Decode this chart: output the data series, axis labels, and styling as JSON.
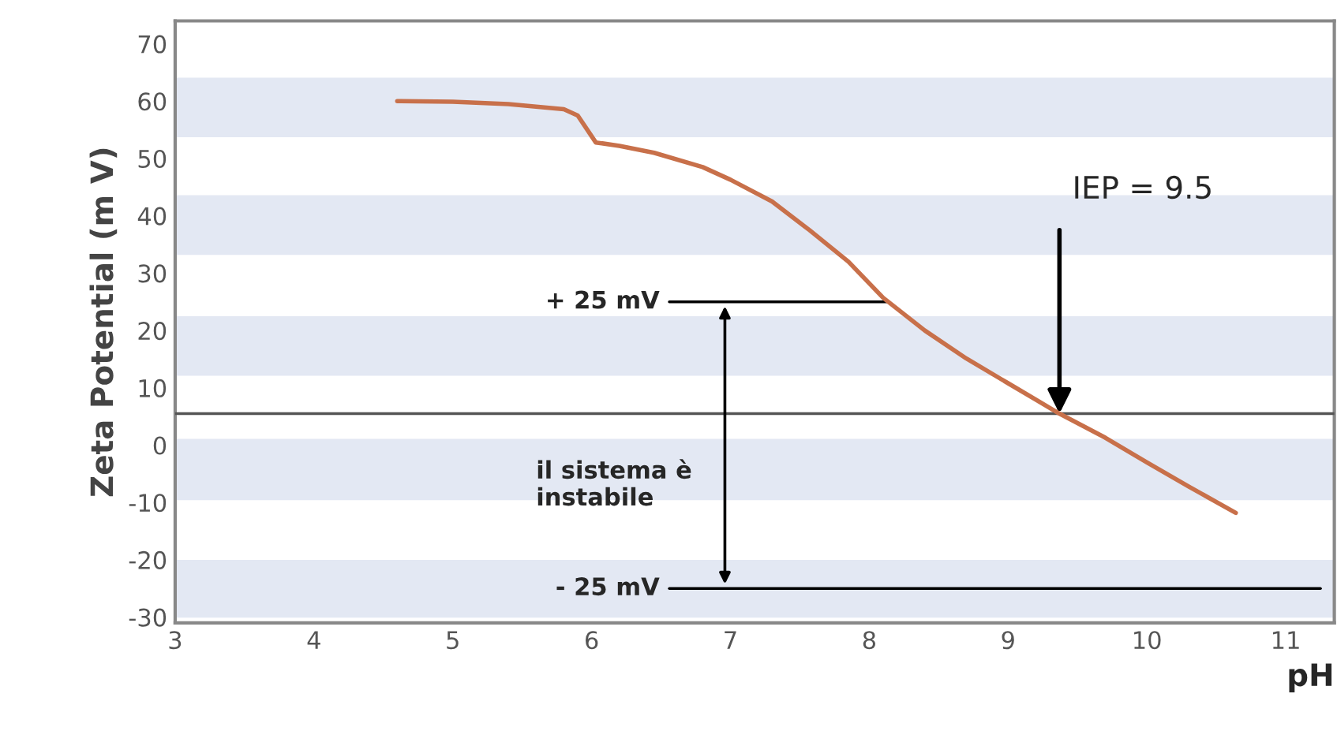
{
  "chart_data": {
    "type": "line",
    "xlabel": "pH",
    "ylabel": "Zeta Potential (m V)",
    "x": [
      4.6,
      5.0,
      5.4,
      5.8,
      5.9,
      6.03,
      6.2,
      6.45,
      6.8,
      7.0,
      7.3,
      7.57,
      7.85,
      8.1,
      8.4,
      8.7,
      9.0,
      9.37,
      9.7,
      10.0,
      10.3,
      10.64
    ],
    "series": [
      {
        "color": "#c8704a",
        "values": [
          60,
          59.9,
          59.5,
          58.6,
          57.5,
          52.8,
          52.2,
          51,
          48.5,
          46.3,
          42.5,
          37.5,
          32,
          25.7,
          20,
          15.1,
          10.8,
          5.5,
          1.3,
          -3,
          -7.2,
          -11.8
        ]
      }
    ],
    "xlim": [
      3,
      11.35
    ],
    "xticks": [
      3,
      4,
      5,
      6,
      7,
      8,
      9,
      10,
      11
    ],
    "ylim": [
      -31,
      74
    ],
    "yticks": [
      -30,
      -20,
      -10,
      0,
      10,
      20,
      30,
      40,
      50,
      60,
      70
    ],
    "grid": false,
    "marker": "none",
    "line_style": "solid",
    "ref_lines": [
      {
        "axis": "y",
        "value": 5.5,
        "color": "#555555"
      },
      {
        "axis": "y",
        "value": 25,
        "label": "+ 25 mV",
        "color": "#000000"
      },
      {
        "axis": "y",
        "value": -25,
        "label": "- 25 mV",
        "color": "#000000"
      }
    ],
    "bands": [
      {
        "axis": "y",
        "from": 53.7,
        "to": 64.1,
        "color": "#e3e8f3"
      },
      {
        "axis": "y",
        "from": 33.2,
        "to": 43.6,
        "color": "#e3e8f3"
      },
      {
        "axis": "y",
        "from": 12.1,
        "to": 22.5,
        "color": "#e3e8f3"
      },
      {
        "axis": "y",
        "from": -9.6,
        "to": 1.1,
        "color": "#e3e8f3"
      },
      {
        "axis": "y",
        "from": -30.1,
        "to": -20,
        "color": "#e3e8f3"
      }
    ],
    "annotations": [
      {
        "text": "IEP = 9.5",
        "x": 9.37,
        "y": 5.5
      },
      "il sistema è\ninstabile"
    ]
  }
}
